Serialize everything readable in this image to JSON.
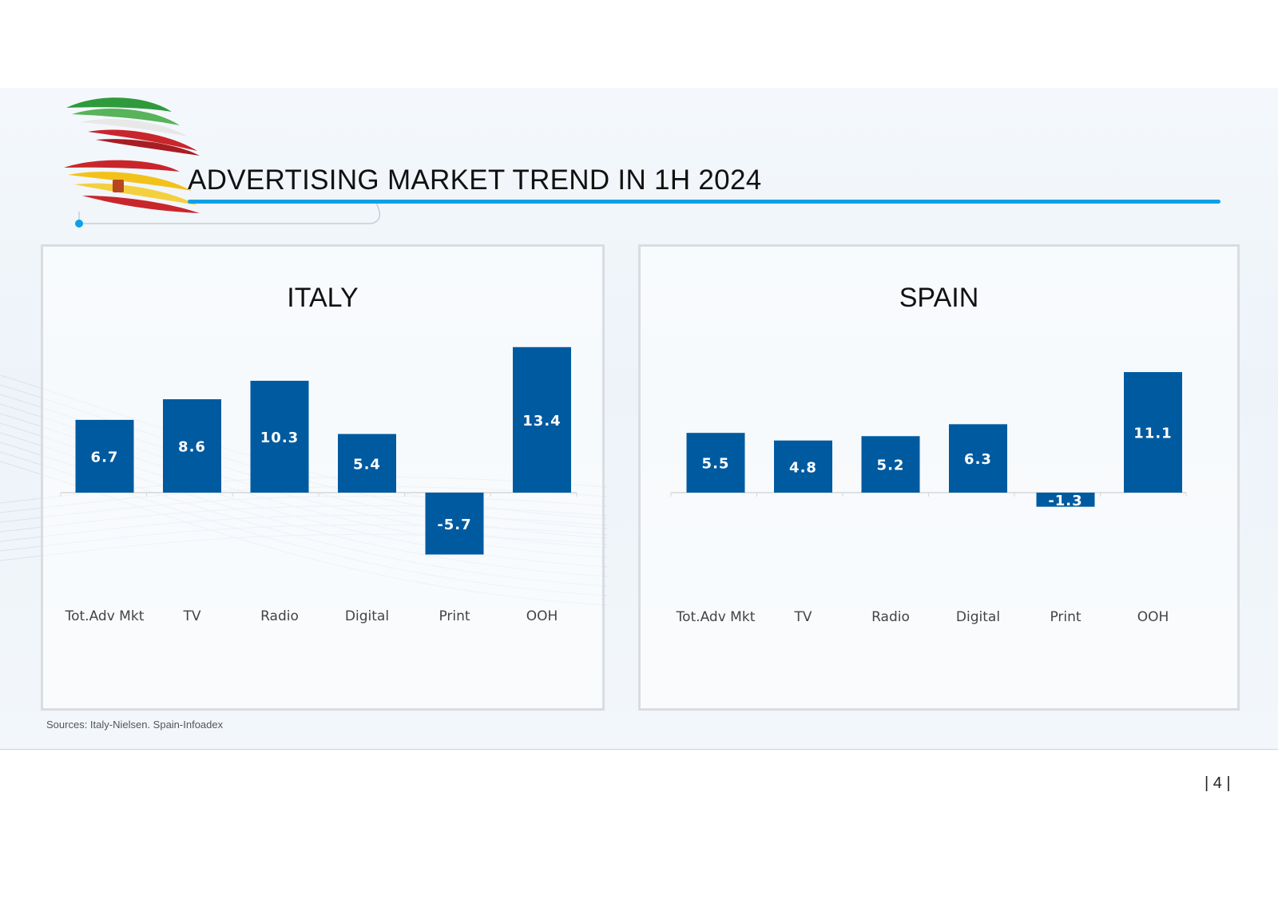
{
  "header": {
    "title": "ADVERTISING MARKET TREND IN 1H 2024"
  },
  "logo": {
    "icon": "italy-spain-flags-logo"
  },
  "footer": {
    "sources": "Sources: Italy-Nielsen. Spain-Infoadex",
    "page": "| 4 |"
  },
  "colors": {
    "bar": "#005aa0",
    "accent": "#0aa2e6",
    "label_on_bar": "#ffffff"
  },
  "chart_data": [
    {
      "type": "bar",
      "title": "ITALY",
      "categories": [
        "Tot.Adv Mkt",
        "TV",
        "Radio",
        "Digital",
        "Print",
        "OOH"
      ],
      "values": [
        6.7,
        8.6,
        10.3,
        5.4,
        -5.7,
        13.4
      ],
      "ylim": [
        -11,
        20
      ]
    },
    {
      "type": "bar",
      "title": "SPAIN",
      "categories": [
        "Tot.Adv Mkt",
        "TV",
        "Radio",
        "Digital",
        "Print",
        "OOH"
      ],
      "values": [
        5.5,
        4.8,
        5.2,
        6.3,
        -1.3,
        11.1
      ],
      "ylim": [
        -11,
        20
      ]
    }
  ]
}
